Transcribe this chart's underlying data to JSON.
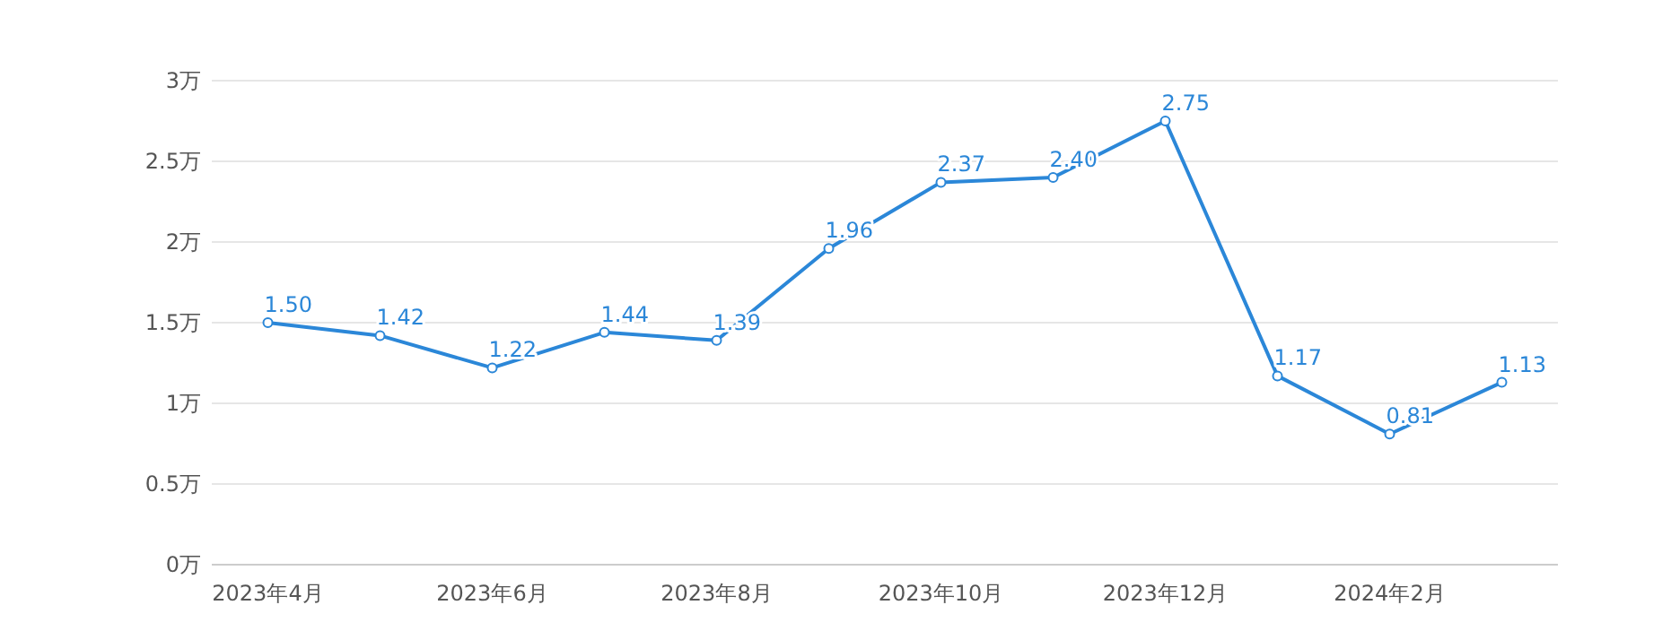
{
  "chart_data": {
    "type": "line",
    "categories": [
      "2023年4月",
      null,
      "2023年6月",
      null,
      "2023年8月",
      null,
      "2023年10月",
      null,
      "2023年12月",
      null,
      "2024年2月",
      null
    ],
    "values": [
      1.5,
      1.42,
      1.22,
      1.44,
      1.39,
      1.96,
      2.37,
      2.4,
      2.75,
      1.17,
      0.81,
      1.13
    ],
    "value_labels": [
      "1.50",
      "1.42",
      "1.22",
      "1.44",
      "1.39",
      "1.96",
      "2.37",
      "2.40",
      "2.75",
      "1.17",
      "0.81",
      "1.13"
    ],
    "color": "#2b87d8",
    "ylim": [
      0,
      3
    ],
    "yticks": [
      {
        "value": 0,
        "label": "0万"
      },
      {
        "value": 0.5,
        "label": "0.5万"
      },
      {
        "value": 1,
        "label": "1万"
      },
      {
        "value": 1.5,
        "label": "1.5万"
      },
      {
        "value": 2,
        "label": "2万"
      },
      {
        "value": 2.5,
        "label": "2.5万"
      },
      {
        "value": 3,
        "label": "3万"
      }
    ],
    "grid": "y",
    "marker": "circle"
  }
}
